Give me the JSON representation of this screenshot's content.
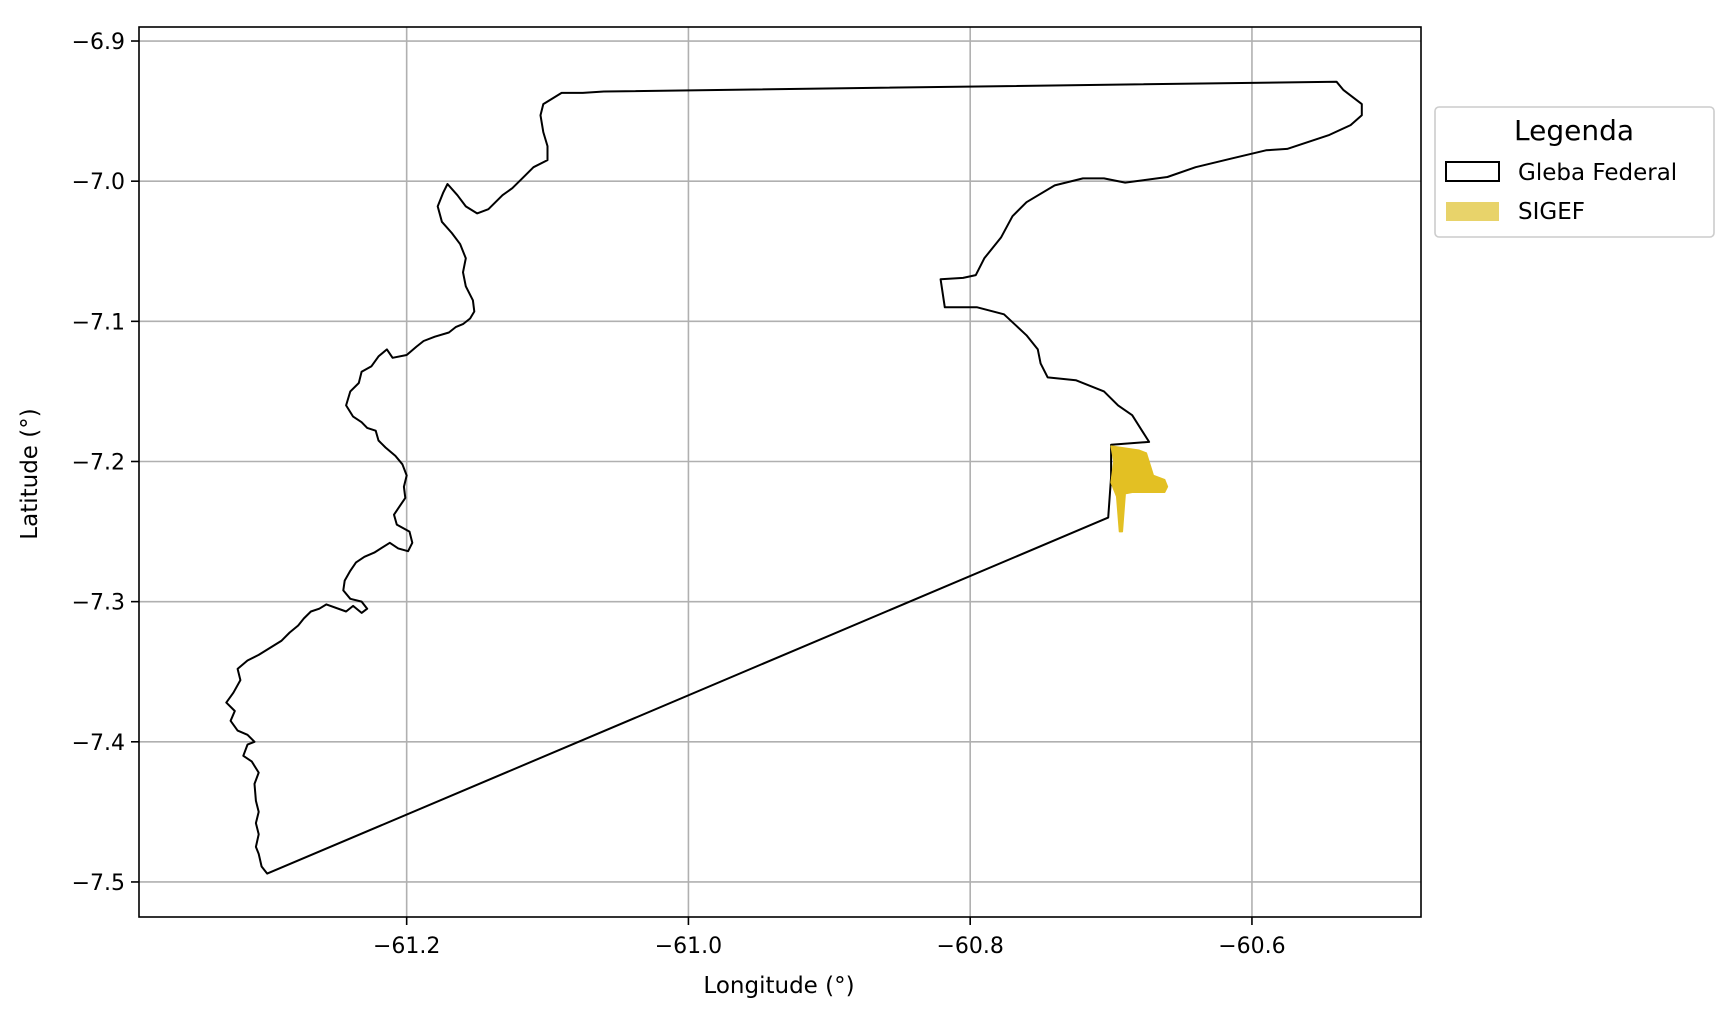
{
  "chart_data": {
    "type": "map",
    "xlabel": "Longitude (°)",
    "ylabel": "Latitude (°)",
    "xlim": [
      -61.39,
      -60.48
    ],
    "ylim": [
      -7.525,
      -6.89
    ],
    "x_ticks": [
      -61.2,
      -61.0,
      -60.8,
      -60.6
    ],
    "y_ticks": [
      -6.9,
      -7.0,
      -7.1,
      -7.2,
      -7.3,
      -7.4,
      -7.5
    ],
    "x_tick_labels": [
      "−61.2",
      "−61.0",
      "−60.8",
      "−60.6"
    ],
    "y_tick_labels": [
      "−6.9",
      "−7.0",
      "−7.1",
      "−7.2",
      "−7.3",
      "−7.4",
      "−7.5"
    ],
    "grid": true,
    "legend": {
      "title": "Legenda",
      "position": "outside-right",
      "entries": [
        {
          "label": "Gleba Federal",
          "style": "outline",
          "color": "#000000"
        },
        {
          "label": "SIGEF",
          "style": "fill",
          "color": "#e8d36a"
        }
      ]
    },
    "layers": [
      {
        "name": "Gleba Federal",
        "type": "polygon",
        "stroke": "#000000",
        "fill": "none",
        "coordinates": [
          [
            -61.299,
            -7.494
          ],
          [
            -61.303,
            -7.489
          ],
          [
            -61.305,
            -7.48
          ],
          [
            -61.307,
            -7.475
          ],
          [
            -61.305,
            -7.466
          ],
          [
            -61.307,
            -7.458
          ],
          [
            -61.305,
            -7.45
          ],
          [
            -61.307,
            -7.442
          ],
          [
            -61.308,
            -7.43
          ],
          [
            -61.305,
            -7.422
          ],
          [
            -61.31,
            -7.414
          ],
          [
            -61.316,
            -7.41
          ],
          [
            -61.313,
            -7.402
          ],
          [
            -61.308,
            -7.4
          ],
          [
            -61.313,
            -7.395
          ],
          [
            -61.32,
            -7.392
          ],
          [
            -61.325,
            -7.385
          ],
          [
            -61.322,
            -7.378
          ],
          [
            -61.328,
            -7.372
          ],
          [
            -61.323,
            -7.365
          ],
          [
            -61.318,
            -7.356
          ],
          [
            -61.32,
            -7.348
          ],
          [
            -61.313,
            -7.342
          ],
          [
            -61.305,
            -7.338
          ],
          [
            -61.297,
            -7.333
          ],
          [
            -61.289,
            -7.328
          ],
          [
            -61.283,
            -7.322
          ],
          [
            -61.277,
            -7.317
          ],
          [
            -61.273,
            -7.312
          ],
          [
            -61.268,
            -7.307
          ],
          [
            -61.262,
            -7.305
          ],
          [
            -61.257,
            -7.302
          ],
          [
            -61.243,
            -7.307
          ],
          [
            -61.238,
            -7.303
          ],
          [
            -61.232,
            -7.308
          ],
          [
            -61.228,
            -7.305
          ],
          [
            -61.232,
            -7.3
          ],
          [
            -61.24,
            -7.298
          ],
          [
            -61.245,
            -7.292
          ],
          [
            -61.244,
            -7.285
          ],
          [
            -61.24,
            -7.278
          ],
          [
            -61.236,
            -7.272
          ],
          [
            -61.23,
            -7.268
          ],
          [
            -61.223,
            -7.265
          ],
          [
            -61.212,
            -7.258
          ],
          [
            -61.206,
            -7.262
          ],
          [
            -61.199,
            -7.264
          ],
          [
            -61.196,
            -7.258
          ],
          [
            -61.198,
            -7.25
          ],
          [
            -61.207,
            -7.245
          ],
          [
            -61.209,
            -7.238
          ],
          [
            -61.205,
            -7.232
          ],
          [
            -61.201,
            -7.226
          ],
          [
            -61.202,
            -7.218
          ],
          [
            -61.2,
            -7.21
          ],
          [
            -61.203,
            -7.202
          ],
          [
            -61.208,
            -7.196
          ],
          [
            -61.215,
            -7.19
          ],
          [
            -61.22,
            -7.185
          ],
          [
            -61.222,
            -7.178
          ],
          [
            -61.228,
            -7.176
          ],
          [
            -61.232,
            -7.172
          ],
          [
            -61.238,
            -7.168
          ],
          [
            -61.243,
            -7.16
          ],
          [
            -61.24,
            -7.15
          ],
          [
            -61.234,
            -7.144
          ],
          [
            -61.232,
            -7.136
          ],
          [
            -61.225,
            -7.132
          ],
          [
            -61.22,
            -7.125
          ],
          [
            -61.214,
            -7.12
          ],
          [
            -61.21,
            -7.126
          ],
          [
            -61.2,
            -7.124
          ],
          [
            -61.193,
            -7.118
          ],
          [
            -61.188,
            -7.114
          ],
          [
            -61.18,
            -7.111
          ],
          [
            -61.17,
            -7.108
          ],
          [
            -61.165,
            -7.104
          ],
          [
            -61.16,
            -7.102
          ],
          [
            -61.155,
            -7.098
          ],
          [
            -61.152,
            -7.093
          ],
          [
            -61.153,
            -7.085
          ],
          [
            -61.158,
            -7.075
          ],
          [
            -61.16,
            -7.065
          ],
          [
            -61.158,
            -7.055
          ],
          [
            -61.162,
            -7.045
          ],
          [
            -61.168,
            -7.037
          ],
          [
            -61.175,
            -7.029
          ],
          [
            -61.178,
            -7.018
          ],
          [
            -61.174,
            -7.008
          ],
          [
            -61.171,
            -7.002
          ],
          [
            -61.164,
            -7.01
          ],
          [
            -61.158,
            -7.018
          ],
          [
            -61.15,
            -7.023
          ],
          [
            -61.142,
            -7.02
          ],
          [
            -61.132,
            -7.01
          ],
          [
            -61.125,
            -7.005
          ],
          [
            -61.118,
            -6.998
          ],
          [
            -61.11,
            -6.99
          ],
          [
            -61.1,
            -6.985
          ],
          [
            -61.1,
            -6.975
          ],
          [
            -61.103,
            -6.965
          ],
          [
            -61.105,
            -6.953
          ],
          [
            -61.103,
            -6.945
          ],
          [
            -61.09,
            -6.937
          ],
          [
            -61.075,
            -6.937
          ],
          [
            -61.06,
            -6.936
          ],
          [
            -60.54,
            -6.929
          ],
          [
            -60.535,
            -6.935
          ],
          [
            -60.522,
            -6.945
          ],
          [
            -60.522,
            -6.953
          ],
          [
            -60.53,
            -6.96
          ],
          [
            -60.545,
            -6.967
          ],
          [
            -60.575,
            -6.977
          ],
          [
            -60.59,
            -6.978
          ],
          [
            -60.615,
            -6.984
          ],
          [
            -60.64,
            -6.99
          ],
          [
            -60.66,
            -6.997
          ],
          [
            -60.69,
            -7.001
          ],
          [
            -60.705,
            -6.998
          ],
          [
            -60.72,
            -6.998
          ],
          [
            -60.74,
            -7.003
          ],
          [
            -60.76,
            -7.015
          ],
          [
            -60.77,
            -7.025
          ],
          [
            -60.778,
            -7.04
          ],
          [
            -60.79,
            -7.055
          ],
          [
            -60.796,
            -7.067
          ],
          [
            -60.805,
            -7.069
          ],
          [
            -60.821,
            -7.07
          ],
          [
            -60.818,
            -7.09
          ],
          [
            -60.795,
            -7.09
          ],
          [
            -60.776,
            -7.095
          ],
          [
            -60.76,
            -7.11
          ],
          [
            -60.752,
            -7.12
          ],
          [
            -60.75,
            -7.13
          ],
          [
            -60.745,
            -7.14
          ],
          [
            -60.725,
            -7.142
          ],
          [
            -60.705,
            -7.15
          ],
          [
            -60.695,
            -7.16
          ],
          [
            -60.685,
            -7.167
          ],
          [
            -60.673,
            -7.186
          ],
          [
            -60.7,
            -7.188
          ],
          [
            -60.7,
            -7.211
          ],
          [
            -60.702,
            -7.24
          ],
          [
            -61.299,
            -7.494
          ]
        ]
      },
      {
        "name": "SIGEF",
        "type": "polygon",
        "fill": "#e3c023",
        "coordinates": [
          [
            -60.7,
            -7.189
          ],
          [
            -60.68,
            -7.192
          ],
          [
            -60.675,
            -7.194
          ],
          [
            -60.67,
            -7.21
          ],
          [
            -60.662,
            -7.213
          ],
          [
            -60.66,
            -7.218
          ],
          [
            -60.662,
            -7.222
          ],
          [
            -60.685,
            -7.222
          ],
          [
            -60.69,
            -7.223
          ],
          [
            -60.692,
            -7.25
          ],
          [
            -60.694,
            -7.25
          ],
          [
            -60.696,
            -7.225
          ],
          [
            -60.7,
            -7.215
          ],
          [
            -60.698,
            -7.2
          ],
          [
            -60.7,
            -7.189
          ]
        ]
      }
    ]
  }
}
